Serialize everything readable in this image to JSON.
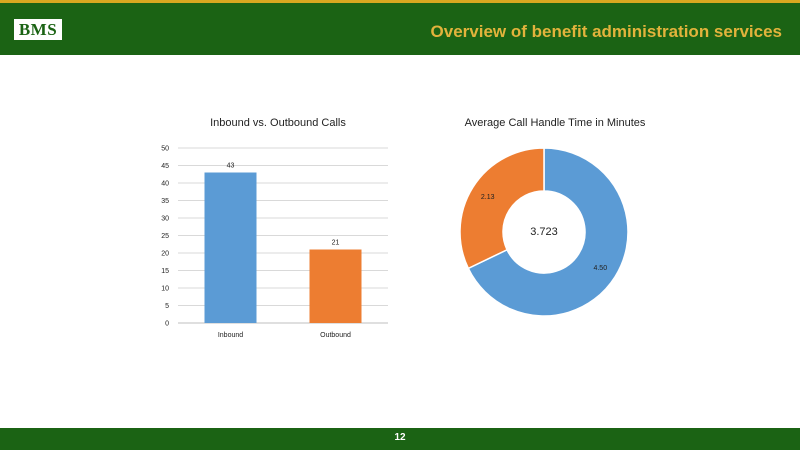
{
  "header": {
    "logo_text": "BMS",
    "title": "Overview of benefit administration services",
    "title_color": "#e2b33c",
    "bar_color": "#1b6314"
  },
  "footer": {
    "page_number": "12"
  },
  "chart_data": [
    {
      "type": "bar",
      "title": "Inbound vs. Outbound Calls",
      "categories": [
        "Inbound",
        "Outbound"
      ],
      "values": [
        43,
        21
      ],
      "colors": [
        "#5b9bd5",
        "#ed7d31"
      ],
      "ylim": [
        0,
        50
      ],
      "yticks": [
        0,
        5,
        10,
        15,
        20,
        25,
        30,
        35,
        40,
        45,
        50
      ],
      "grid": true,
      "xlabel": "",
      "ylabel": ""
    },
    {
      "type": "pie",
      "subtype": "donut",
      "title": "Average Call Handle Time in Minutes",
      "slices": [
        {
          "label": "4.50",
          "value": 4.5,
          "color": "#5b9bd5"
        },
        {
          "label": "2.13",
          "value": 2.13,
          "color": "#ed7d31"
        }
      ],
      "center_label": "3.723"
    }
  ]
}
